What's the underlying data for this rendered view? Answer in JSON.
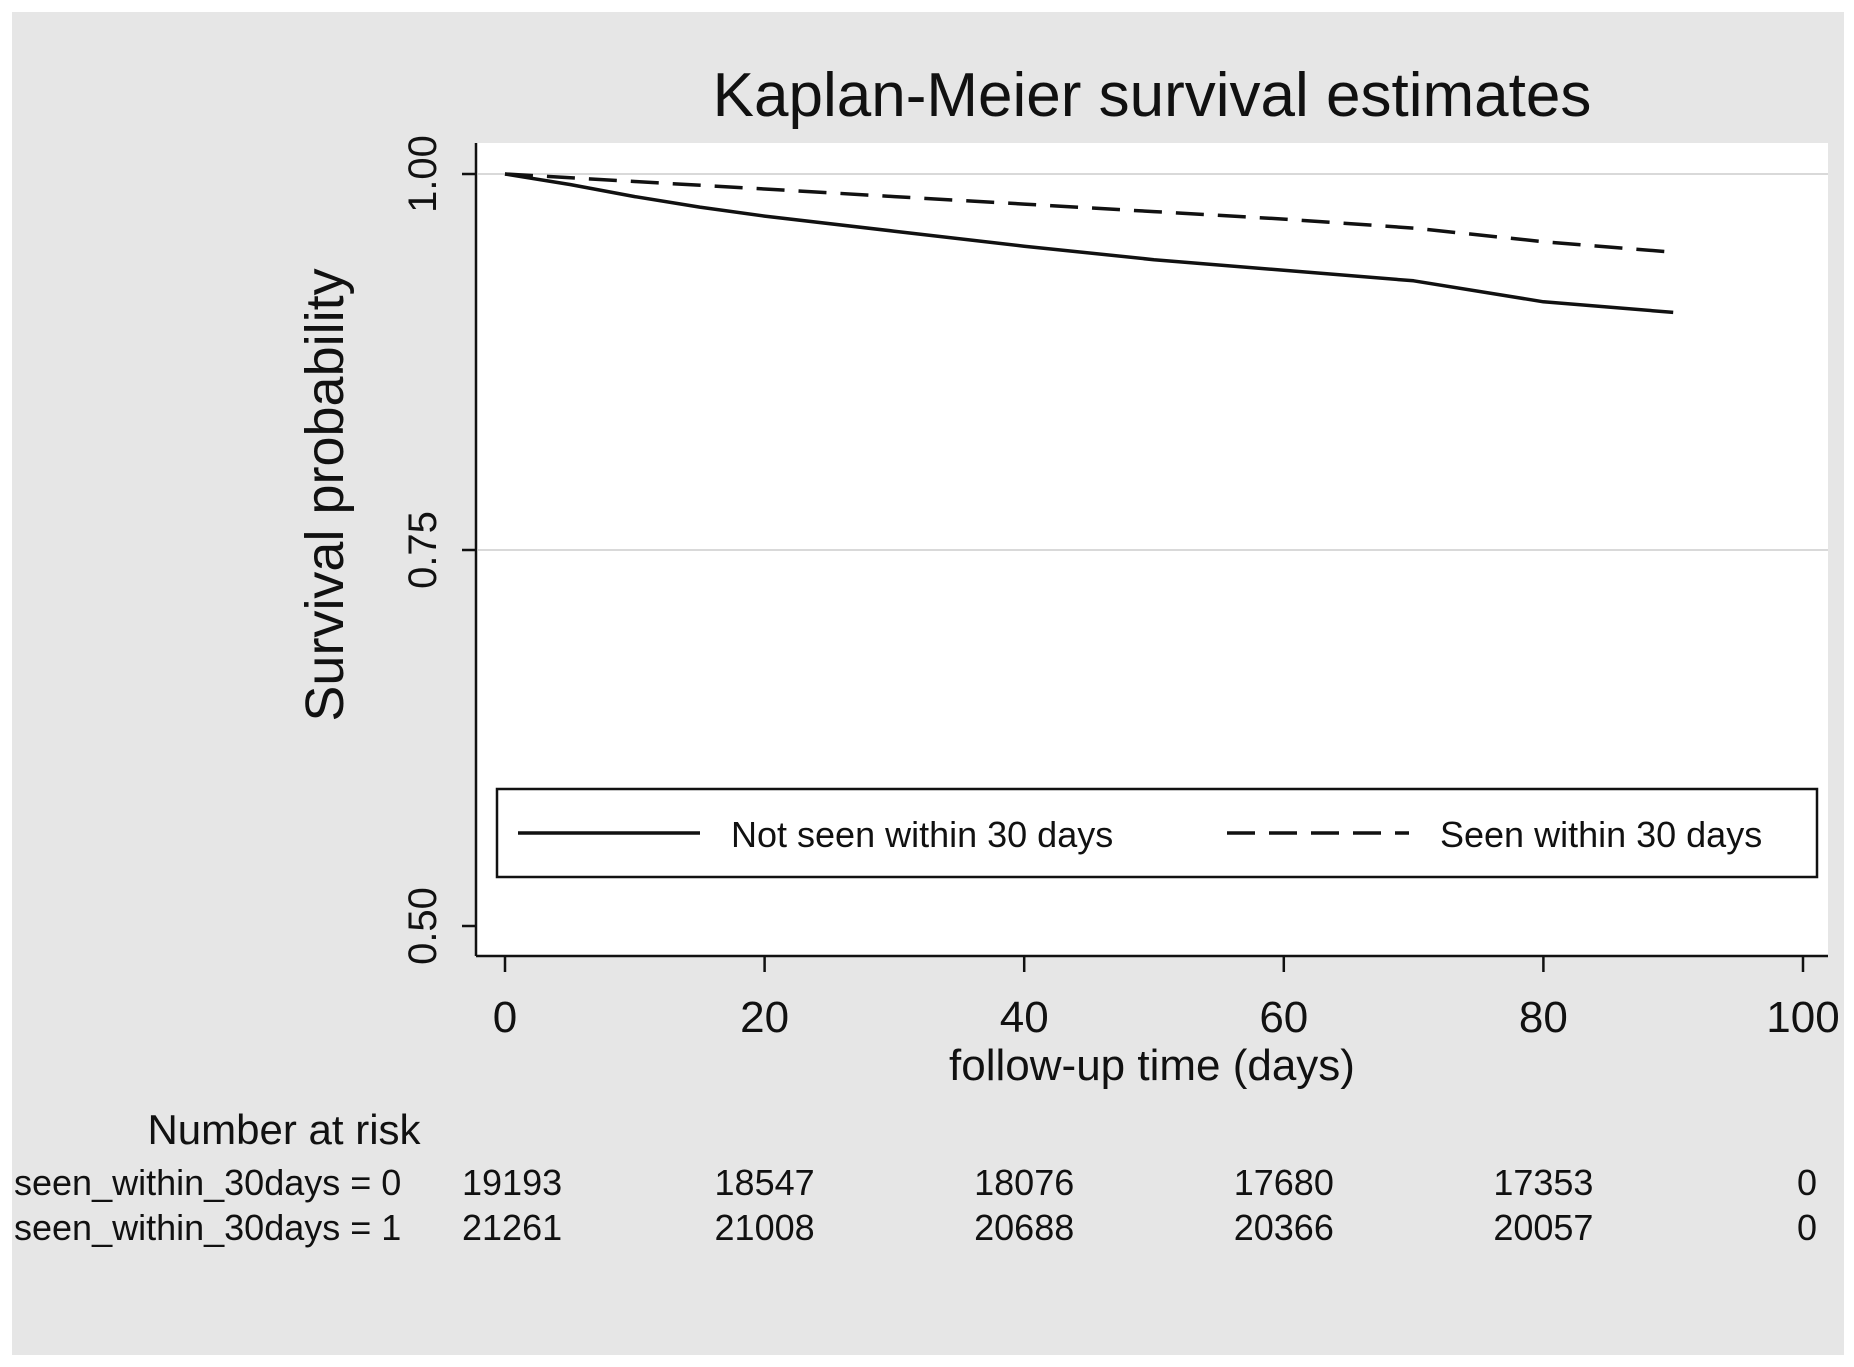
{
  "chart_data": {
    "type": "line",
    "title": "Kaplan-Meier survival estimates",
    "xlabel": "follow-up time (days)",
    "ylabel": "Survival probability",
    "xlim": [
      0,
      100
    ],
    "ylim": [
      0.5,
      1.0
    ],
    "x_ticks": [
      0,
      20,
      40,
      60,
      80,
      100
    ],
    "y_ticks": [
      0.5,
      0.75,
      1.0
    ],
    "x_tick_labels": [
      "0",
      "20",
      "40",
      "60",
      "80",
      "100"
    ],
    "y_tick_labels": [
      "0.50",
      "0.75",
      "1.00"
    ],
    "grid": "horizontal",
    "legend": "inside-bottom",
    "series": [
      {
        "name": "Not seen within 30 days",
        "style": "solid",
        "x": [
          0,
          5,
          10,
          15,
          20,
          30,
          40,
          50,
          60,
          70,
          80,
          90
        ],
        "y": [
          1.0,
          0.993,
          0.985,
          0.978,
          0.972,
          0.962,
          0.952,
          0.943,
          0.936,
          0.929,
          0.915,
          0.908
        ]
      },
      {
        "name": "Seen within 30 days",
        "style": "dashed",
        "x": [
          0,
          10,
          20,
          30,
          40,
          50,
          60,
          70,
          80,
          90
        ],
        "y": [
          1.0,
          0.995,
          0.99,
          0.985,
          0.98,
          0.975,
          0.97,
          0.964,
          0.955,
          0.948
        ]
      }
    ],
    "risk_table": {
      "title": "Number at risk",
      "rows": [
        {
          "label": "seen_within_30days = 0",
          "values": [
            "19193",
            "18547",
            "18076",
            "17680",
            "17353",
            "0"
          ]
        },
        {
          "label": "seen_within_30days = 1",
          "values": [
            "21261",
            "21008",
            "20688",
            "20366",
            "20057",
            "0"
          ]
        }
      ]
    },
    "colors": {
      "background": "#e6e6e6",
      "plot_area": "#ffffff",
      "line": "#111111",
      "grid": "#d9d9d9"
    }
  }
}
